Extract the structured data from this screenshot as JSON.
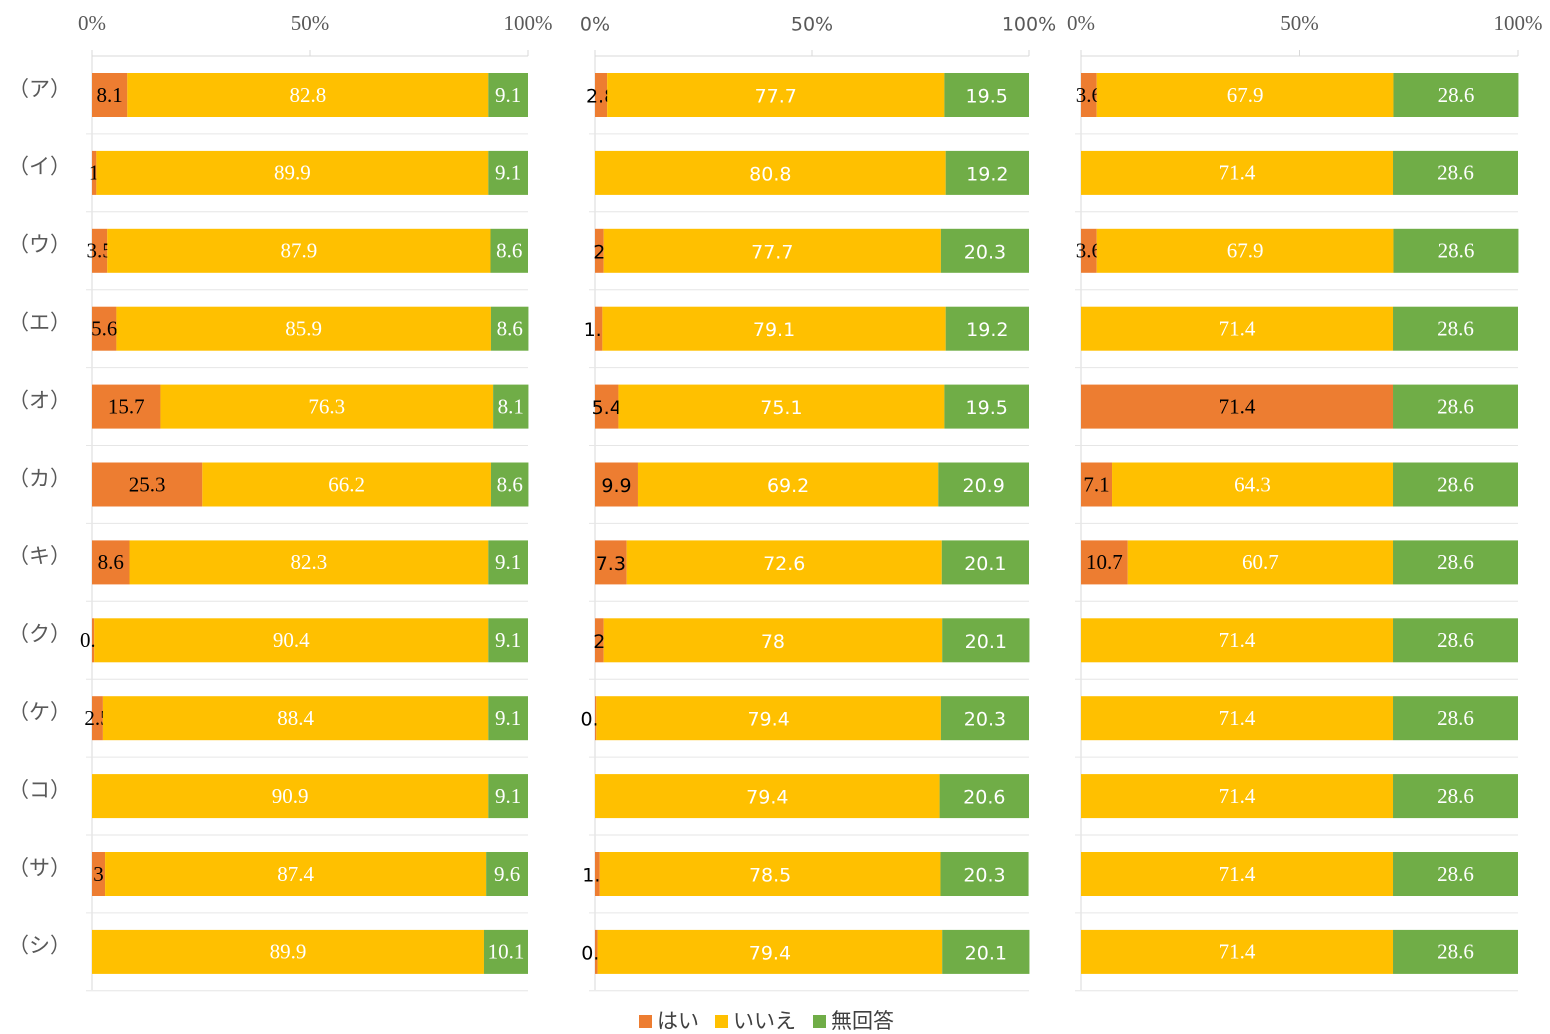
{
  "chart_data": {
    "type": "bar",
    "stacked": true,
    "categories": [
      "（ア）",
      "（イ）",
      "（ウ）",
      "（エ）",
      "（オ）",
      "（カ）",
      "（キ）",
      "（ク）",
      "（ケ）",
      "（コ）",
      "（サ）",
      "（シ）"
    ],
    "xlim": [
      0,
      100
    ],
    "xticks": [
      {
        "value": 0,
        "label": "0%"
      },
      {
        "value": 50,
        "label": "50%"
      },
      {
        "value": 100,
        "label": "100%"
      }
    ],
    "legend": "bottom",
    "series": [
      {
        "name": "はい",
        "color": "#ed7d31"
      },
      {
        "name": "いいえ",
        "color": "#ffc000"
      },
      {
        "name": "無回答",
        "color": "#70ad47"
      }
    ],
    "panels": [
      {
        "series": [
          {
            "values": [
              8.1,
              1,
              3.5,
              5.6,
              15.7,
              25.3,
              8.6,
              0.5,
              2.5,
              null,
              3,
              null
            ]
          },
          {
            "values": [
              82.8,
              89.9,
              87.9,
              85.9,
              76.3,
              66.2,
              82.3,
              90.4,
              88.4,
              90.9,
              87.4,
              89.9
            ]
          },
          {
            "values": [
              9.1,
              9.1,
              8.6,
              8.6,
              8.1,
              8.6,
              9.1,
              9.1,
              9.1,
              9.1,
              9.6,
              10.1
            ]
          }
        ]
      },
      {
        "series": [
          {
            "values": [
              2.8,
              null,
              2,
              1.7,
              5.4,
              9.9,
              7.3,
              2,
              0.3,
              null,
              1.1,
              0.6
            ]
          },
          {
            "values": [
              77.7,
              80.8,
              77.7,
              79.1,
              75.1,
              69.2,
              72.6,
              78,
              79.4,
              79.4,
              78.5,
              79.4
            ]
          },
          {
            "values": [
              19.5,
              19.2,
              20.3,
              19.2,
              19.5,
              20.9,
              20.1,
              20.1,
              20.3,
              20.6,
              20.3,
              20.1
            ]
          }
        ]
      },
      {
        "series": [
          {
            "values": [
              3.6,
              null,
              3.6,
              null,
              71.4,
              7.1,
              10.7,
              null,
              null,
              null,
              null,
              null
            ]
          },
          {
            "values": [
              67.9,
              71.4,
              67.9,
              71.4,
              null,
              64.3,
              60.7,
              71.4,
              71.4,
              71.4,
              71.4,
              71.4
            ]
          },
          {
            "values": [
              28.6,
              28.6,
              28.6,
              28.6,
              28.6,
              28.6,
              28.6,
              28.6,
              28.6,
              28.6,
              28.6,
              28.6
            ]
          }
        ]
      }
    ]
  }
}
